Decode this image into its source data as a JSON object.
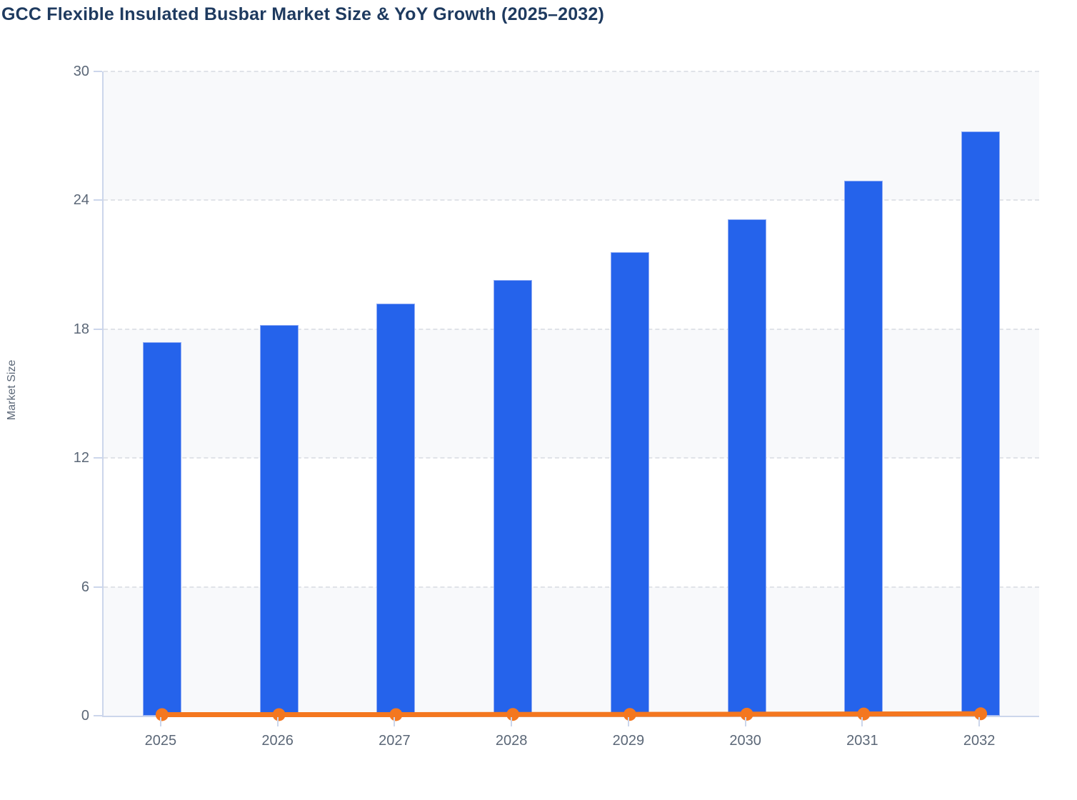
{
  "header": {
    "title": "GCC Flexible Insulated Busbar Market Size & YoY Growth (2025–2032)"
  },
  "y_axis": {
    "title": "Market Size",
    "tick_labels": [
      "0",
      "6",
      "12",
      "18",
      "24",
      "30"
    ]
  },
  "colors": {
    "bar": "#2563eb",
    "bar_border": "#92adf5",
    "line": "#f4771f",
    "band": "#f8f9fb",
    "gridline": "#e0e3e8",
    "axis": "#ccd6eb",
    "label": "#5b6777",
    "title": "#1e3a5f"
  },
  "chart_data": {
    "type": "bar",
    "subtype": "bar+line combo",
    "title": "GCC Flexible Insulated Busbar Market Size & YoY Growth (2025–2032)",
    "categories": [
      "2025",
      "2026",
      "2027",
      "2028",
      "2029",
      "2030",
      "2031",
      "2032"
    ],
    "series": [
      {
        "name": "Market Size",
        "type": "bar",
        "color": "#2563eb",
        "values": [
          17.4,
          18.2,
          19.2,
          20.3,
          21.6,
          23.1,
          24.9,
          27.2
        ]
      },
      {
        "name": "YoY Growth",
        "type": "line",
        "color": "#f4771f",
        "values": [
          0.05,
          0.05,
          0.05,
          0.06,
          0.06,
          0.07,
          0.08,
          0.09
        ]
      }
    ],
    "xlabel": "",
    "ylabel": "Market Size",
    "ylim": [
      0,
      30
    ],
    "yticks": [
      0,
      6,
      12,
      18,
      24,
      30
    ],
    "grid": "horizontal dashed",
    "alternating_bands": [
      [
        0,
        6
      ],
      [
        12,
        18
      ],
      [
        24,
        30
      ]
    ],
    "legend": "none"
  }
}
